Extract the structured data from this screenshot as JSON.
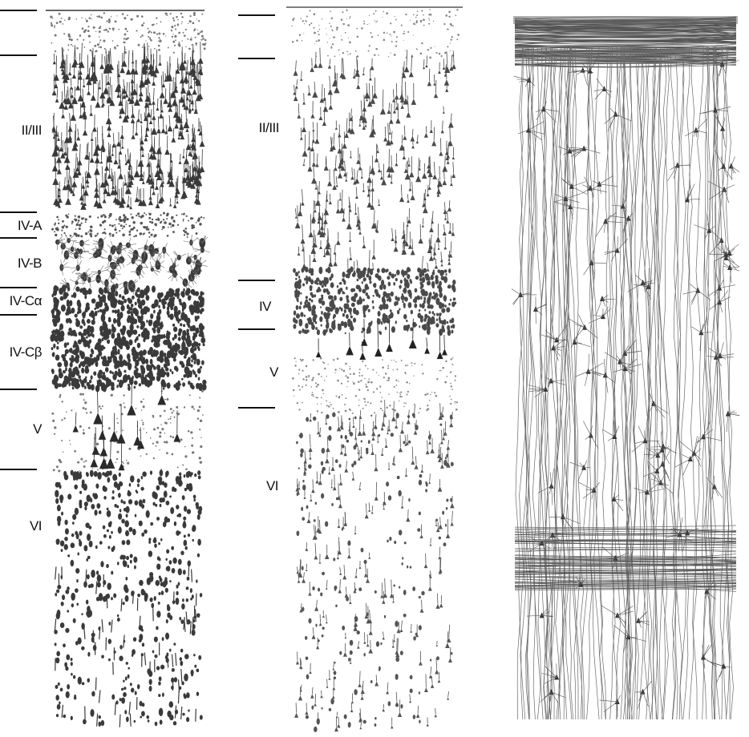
{
  "panels": [
    {
      "name": "left",
      "layers": [
        "II/III",
        "IV-A",
        "IV-B",
        "IV-Cα",
        "IV-Cβ",
        "V",
        "VI"
      ]
    },
    {
      "name": "middle",
      "layers": [
        "II/III",
        "IV",
        "V",
        "VI"
      ]
    },
    {
      "name": "right",
      "layers": []
    }
  ],
  "colors": {
    "background": "#ffffff",
    "ink": "#111111",
    "cell": "#3a3a3a",
    "fiber": "#6a6a6a"
  },
  "icons": [
    "nissl-stained-cells",
    "nissl-stained-cells",
    "golgi-stained-neurons"
  ]
}
